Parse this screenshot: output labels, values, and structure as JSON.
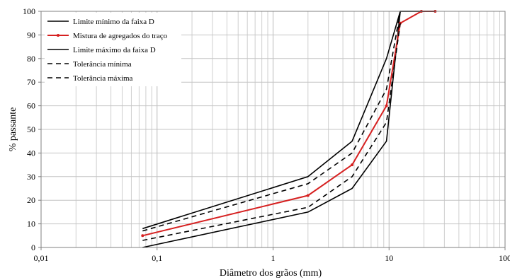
{
  "chart_data": {
    "type": "line",
    "xscale": "log",
    "xlim": [
      0.01,
      100
    ],
    "ylim": [
      0,
      100
    ],
    "xlabel": "Diâmetro dos grãos (mm)",
    "ylabel": "% passante",
    "xticks": [
      {
        "value": 0.01,
        "label": "0,01"
      },
      {
        "value": 0.1,
        "label": "0,1"
      },
      {
        "value": 1,
        "label": "1"
      },
      {
        "value": 10,
        "label": "10"
      },
      {
        "value": 100,
        "label": "100"
      }
    ],
    "yticks": [
      0,
      10,
      20,
      30,
      40,
      50,
      60,
      70,
      80,
      90,
      100
    ],
    "grid": true,
    "legend_position": "top-left",
    "series": [
      {
        "name": "Limite mínimo da faixa D",
        "color": "#000000",
        "style": "solid",
        "marker": false,
        "x": [
          0.075,
          2,
          4.8,
          9.5,
          12.5,
          19,
          25
        ],
        "y": [
          0,
          15,
          25,
          45,
          100,
          100,
          100
        ]
      },
      {
        "name": "Mistura de agregados do traço",
        "color": "#d62020",
        "style": "solid",
        "marker": true,
        "x": [
          0.075,
          2,
          4.8,
          9.5,
          12.5,
          19,
          25
        ],
        "y": [
          5,
          22,
          35,
          60,
          95,
          100,
          100
        ]
      },
      {
        "name": "Limite máximo da faixa D",
        "color": "#000000",
        "style": "solid",
        "marker": false,
        "x": [
          0.075,
          2,
          4.8,
          9.5,
          12.5,
          19,
          25
        ],
        "y": [
          8,
          30,
          45,
          80,
          100,
          100,
          100
        ]
      },
      {
        "name": "Tolerância mínima",
        "color": "#000000",
        "style": "dashed",
        "marker": false,
        "x": [
          0.075,
          2,
          4.8,
          9.5,
          12.5
        ],
        "y": [
          3,
          17,
          30,
          53,
          95
        ]
      },
      {
        "name": "Tolerância máxima",
        "color": "#000000",
        "style": "dashed",
        "marker": false,
        "x": [
          0.075,
          2,
          4.8,
          9.5,
          12.5
        ],
        "y": [
          7,
          27,
          40,
          67,
          100
        ]
      }
    ]
  }
}
